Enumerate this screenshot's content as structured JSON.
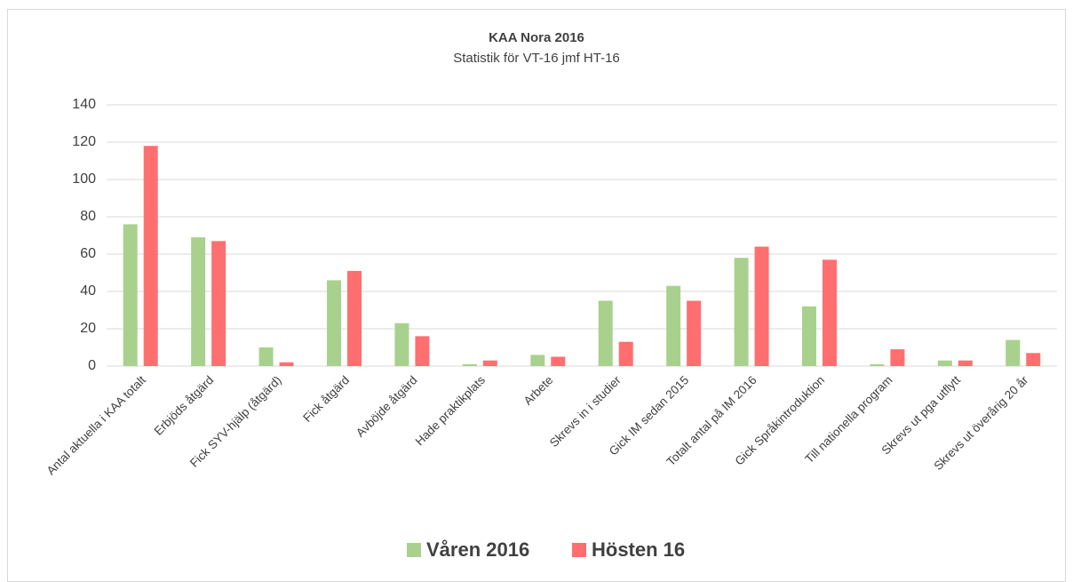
{
  "chart_data": {
    "type": "bar",
    "title": "KAA Nora 2016",
    "subtitle": "Statistik för VT-16 jmf HT-16",
    "categories": [
      "Antal aktuella i KAA totalt",
      "Erbjöds åtgärd",
      "Fick SYV-hjälp (åtgärd)",
      "Fick åtgärd",
      "Avböjde åtgärd",
      "Hade praktikplats",
      "Arbete",
      "Skrevs in i studier",
      "Gick IM sedan 2015",
      "Totalt antal på IM 2016",
      "Gick Språkintroduktion",
      "Till nationella program",
      "Skrevs ut pga utflytt",
      "Skrevs ut överårig 20 år"
    ],
    "series": [
      {
        "name": "Våren 2016",
        "color": "#a9d18e",
        "values": [
          76,
          69,
          10,
          46,
          23,
          1,
          6,
          35,
          43,
          58,
          32,
          1,
          3,
          14
        ]
      },
      {
        "name": "Hösten 16",
        "color": "#ff6f6f",
        "values": [
          118,
          67,
          2,
          51,
          16,
          3,
          5,
          13,
          35,
          64,
          57,
          9,
          3,
          7
        ]
      }
    ],
    "ylim": [
      0,
      140
    ],
    "yticks": [
      0,
      20,
      40,
      60,
      80,
      100,
      120,
      140
    ],
    "grid": true,
    "legend": "bottom"
  }
}
